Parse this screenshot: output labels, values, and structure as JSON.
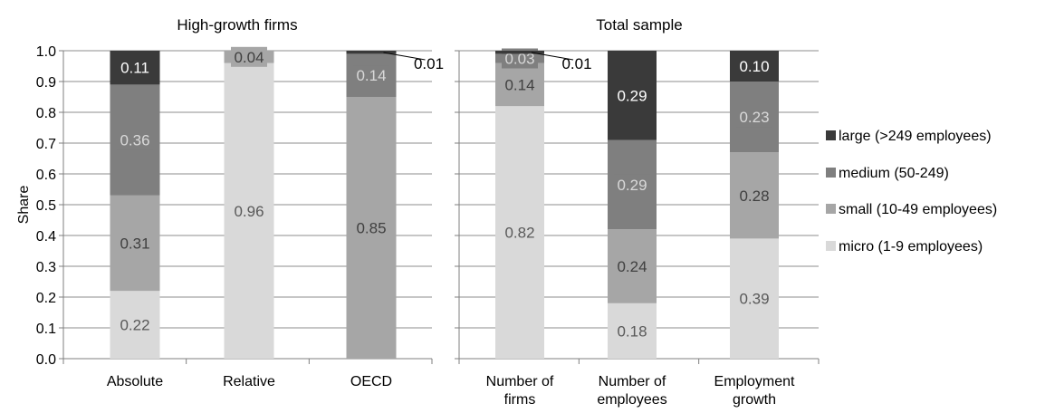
{
  "chart_data": {
    "type": "bar",
    "stacked": true,
    "ylabel": "Share",
    "ylim": [
      0,
      1
    ],
    "yticks": [
      "0.0",
      "0.1",
      "0.2",
      "0.3",
      "0.4",
      "0.5",
      "0.6",
      "0.7",
      "0.8",
      "0.9",
      "1.0"
    ],
    "grid": true,
    "legend_position": "right",
    "series": [
      {
        "name": "large (>249 employees)",
        "color": "#3a3a3a",
        "label_color": "#ffffff"
      },
      {
        "name": "medium (50-249)",
        "color": "#7f7f7f",
        "label_color": "#d9d9d9"
      },
      {
        "name": "small (10-49 employees)",
        "color": "#a6a6a6",
        "label_color": "#404040"
      },
      {
        "name": "micro (1-9 employees)",
        "color": "#d9d9d9",
        "label_color": "#595959"
      }
    ],
    "panels": [
      {
        "title": "High-growth firms",
        "categories": [
          {
            "label": [
              "Absolute"
            ],
            "values": {
              "micro": 0.22,
              "small": 0.31,
              "medium": 0.36,
              "large": 0.11
            },
            "labels": {
              "micro": "0.22",
              "small": "0.31",
              "medium": "0.36",
              "large": "0.11"
            }
          },
          {
            "label": [
              "Relative"
            ],
            "values": {
              "micro": 0.96,
              "small": 0.04,
              "medium": 0.0,
              "large": 0.0
            },
            "labels": {
              "micro": "0.96",
              "small": "0.04"
            }
          },
          {
            "label": [
              "OECD"
            ],
            "values": {
              "micro": 0.0,
              "small": 0.85,
              "medium": 0.14,
              "large": 0.01
            },
            "labels": {
              "small": "0.85",
              "medium": "0.14",
              "large": "0.01"
            },
            "callout": "large"
          }
        ]
      },
      {
        "title": "Total sample",
        "categories": [
          {
            "label": [
              "Number of",
              "firms"
            ],
            "values": {
              "micro": 0.82,
              "small": 0.14,
              "medium": 0.03,
              "large": 0.01
            },
            "labels": {
              "micro": "0.82",
              "small": "0.14",
              "medium": "0.03",
              "large": "0.01"
            },
            "callout": "large"
          },
          {
            "label": [
              "Number of",
              "employees"
            ],
            "values": {
              "micro": 0.18,
              "small": 0.24,
              "medium": 0.29,
              "large": 0.29
            },
            "labels": {
              "micro": "0.18",
              "small": "0.24",
              "medium": "0.29",
              "large": "0.29"
            }
          },
          {
            "label": [
              "Employment",
              "growth"
            ],
            "values": {
              "micro": 0.39,
              "small": 0.28,
              "medium": 0.23,
              "large": 0.1
            },
            "labels": {
              "micro": "0.39",
              "small": "0.28",
              "medium": "0.23",
              "large": "0.10"
            }
          }
        ]
      }
    ]
  }
}
